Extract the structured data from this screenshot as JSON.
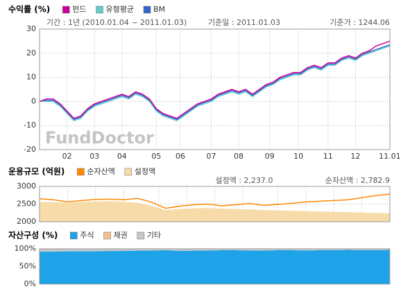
{
  "chart_data": [
    {
      "type": "line",
      "title": "수익률 (%)",
      "annotations": [
        "기간 : 1년 (2010.01.04 ~ 2011.01.03)",
        "기준일 : 2011.01.03",
        "기준가 : 1244.06"
      ],
      "watermark": "FundDoctor",
      "xlim": [
        0,
        51
      ],
      "xticks": [
        {
          "value": 4,
          "label": "02"
        },
        {
          "value": 8,
          "label": "03"
        },
        {
          "value": 12,
          "label": "04"
        },
        {
          "value": 17,
          "label": "05"
        },
        {
          "value": 20.5,
          "label": "06"
        },
        {
          "value": 25,
          "label": "07"
        },
        {
          "value": 29,
          "label": "08"
        },
        {
          "value": 33.5,
          "label": "09"
        },
        {
          "value": 37.7,
          "label": "10"
        },
        {
          "value": 42,
          "label": "11"
        },
        {
          "value": 46,
          "label": "12"
        },
        {
          "value": 51,
          "label": "11.01"
        }
      ],
      "ylim": [
        -20,
        30
      ],
      "yticks": [
        -20,
        -10,
        0,
        10,
        20,
        30
      ],
      "grid": true,
      "series": [
        {
          "name": "펀드",
          "color": "#cc0099",
          "values": [
            0,
            1,
            1,
            -1,
            -4,
            -7,
            -6,
            -3,
            -1,
            0,
            1,
            2,
            3,
            2,
            4,
            3,
            1,
            -3,
            -5,
            -6,
            -7,
            -5,
            -3,
            -1,
            0,
            1,
            3,
            4,
            5,
            4,
            5,
            3,
            5,
            7,
            8,
            10,
            11,
            12,
            12,
            14,
            15,
            14,
            16,
            16,
            18,
            19,
            18,
            20,
            21,
            23,
            24,
            25
          ]
        },
        {
          "name": "유형평균",
          "color": "#66cccc",
          "values": [
            0,
            0,
            0,
            -2,
            -5,
            -8,
            -7,
            -4,
            -2,
            -1,
            0,
            1,
            2,
            1,
            3,
            2,
            0,
            -4,
            -6,
            -7,
            -8,
            -6,
            -4,
            -2,
            -1,
            0,
            2,
            3,
            4,
            3,
            4,
            2,
            4,
            6,
            7,
            9,
            10,
            11,
            11,
            13,
            14,
            13,
            15,
            15,
            17,
            18,
            17,
            19,
            20,
            21,
            22,
            23
          ]
        },
        {
          "name": "BM",
          "color": "#3366cc",
          "values": [
            0,
            0.5,
            0.5,
            -1.5,
            -4.5,
            -7.5,
            -6.5,
            -3.5,
            -1.5,
            -0.5,
            0.5,
            1.5,
            2.5,
            1.5,
            3.5,
            2.5,
            0.5,
            -3.5,
            -5.5,
            -6.5,
            -7.5,
            -5.5,
            -3.5,
            -1.5,
            -0.5,
            0.5,
            2.5,
            3.5,
            4.5,
            3.5,
            4.5,
            2.5,
            4.5,
            6.5,
            7.5,
            9.5,
            10.5,
            11.5,
            11.5,
            13.5,
            14.5,
            13.5,
            15.5,
            15.5,
            17.5,
            18.5,
            17.5,
            19.5,
            20.5,
            21.5,
            22.5,
            23.5
          ]
        }
      ]
    },
    {
      "type": "line",
      "title": "운용규모 (억원)",
      "annotations": [
        "설정액 : 2,237.0",
        "순자산액 : 2,782.9"
      ],
      "xlim": [
        0,
        25
      ],
      "xticks": [
        2,
        4,
        6,
        8.5,
        10.5,
        12.5,
        14.5,
        17,
        19,
        21,
        23
      ],
      "ylim": [
        2000,
        3000
      ],
      "yticks": [
        2000,
        2500,
        3000
      ],
      "grid": true,
      "series": [
        {
          "name": "순자산액",
          "color": "#ff8800",
          "style": "line",
          "values": [
            2650,
            2620,
            2560,
            2600,
            2630,
            2640,
            2620,
            2660,
            2550,
            2380,
            2440,
            2480,
            2500,
            2450,
            2480,
            2520,
            2460,
            2490,
            2520,
            2560,
            2580,
            2600,
            2620,
            2680,
            2740,
            2782.9
          ]
        },
        {
          "name": "설정액",
          "color": "#f7dcaa",
          "style": "area",
          "values": [
            2560,
            2550,
            2540,
            2560,
            2570,
            2580,
            2560,
            2540,
            2450,
            2330,
            2360,
            2380,
            2390,
            2370,
            2360,
            2350,
            2330,
            2320,
            2310,
            2300,
            2290,
            2280,
            2270,
            2260,
            2250,
            2237
          ]
        }
      ]
    },
    {
      "type": "stacked_area",
      "title": "자산구성 (%)",
      "xlim": [
        0,
        25
      ],
      "xticks": [
        2,
        4,
        6,
        8.5,
        10.5,
        12.5,
        14.5,
        17,
        19,
        21,
        23
      ],
      "ylim": [
        0,
        100
      ],
      "yticks": [
        {
          "value": 0,
          "label": "0%"
        },
        {
          "value": 50,
          "label": "50%"
        },
        {
          "value": 100,
          "label": "100%"
        }
      ],
      "grid": true,
      "series": [
        {
          "name": "주식",
          "color": "#1fa3e8",
          "values": [
            92,
            92,
            93,
            93,
            93,
            94,
            94,
            95,
            95,
            96,
            94,
            95,
            95,
            96,
            96,
            95,
            95,
            96,
            96,
            95,
            96,
            96,
            97,
            96,
            96,
            97
          ]
        },
        {
          "name": "채권",
          "color": "#f7c08a",
          "values": [
            0,
            0,
            0,
            0,
            0,
            0,
            0,
            0,
            0,
            0,
            0,
            0,
            0,
            0,
            0,
            0,
            0,
            0,
            0,
            0,
            0,
            0,
            0,
            0,
            0,
            0
          ]
        },
        {
          "name": "기타",
          "color": "#c8c8c8",
          "values": [
            8,
            8,
            7,
            7,
            7,
            6,
            6,
            5,
            5,
            4,
            6,
            5,
            5,
            4,
            4,
            5,
            5,
            4,
            4,
            5,
            4,
            4,
            3,
            4,
            4,
            3
          ]
        }
      ]
    }
  ]
}
